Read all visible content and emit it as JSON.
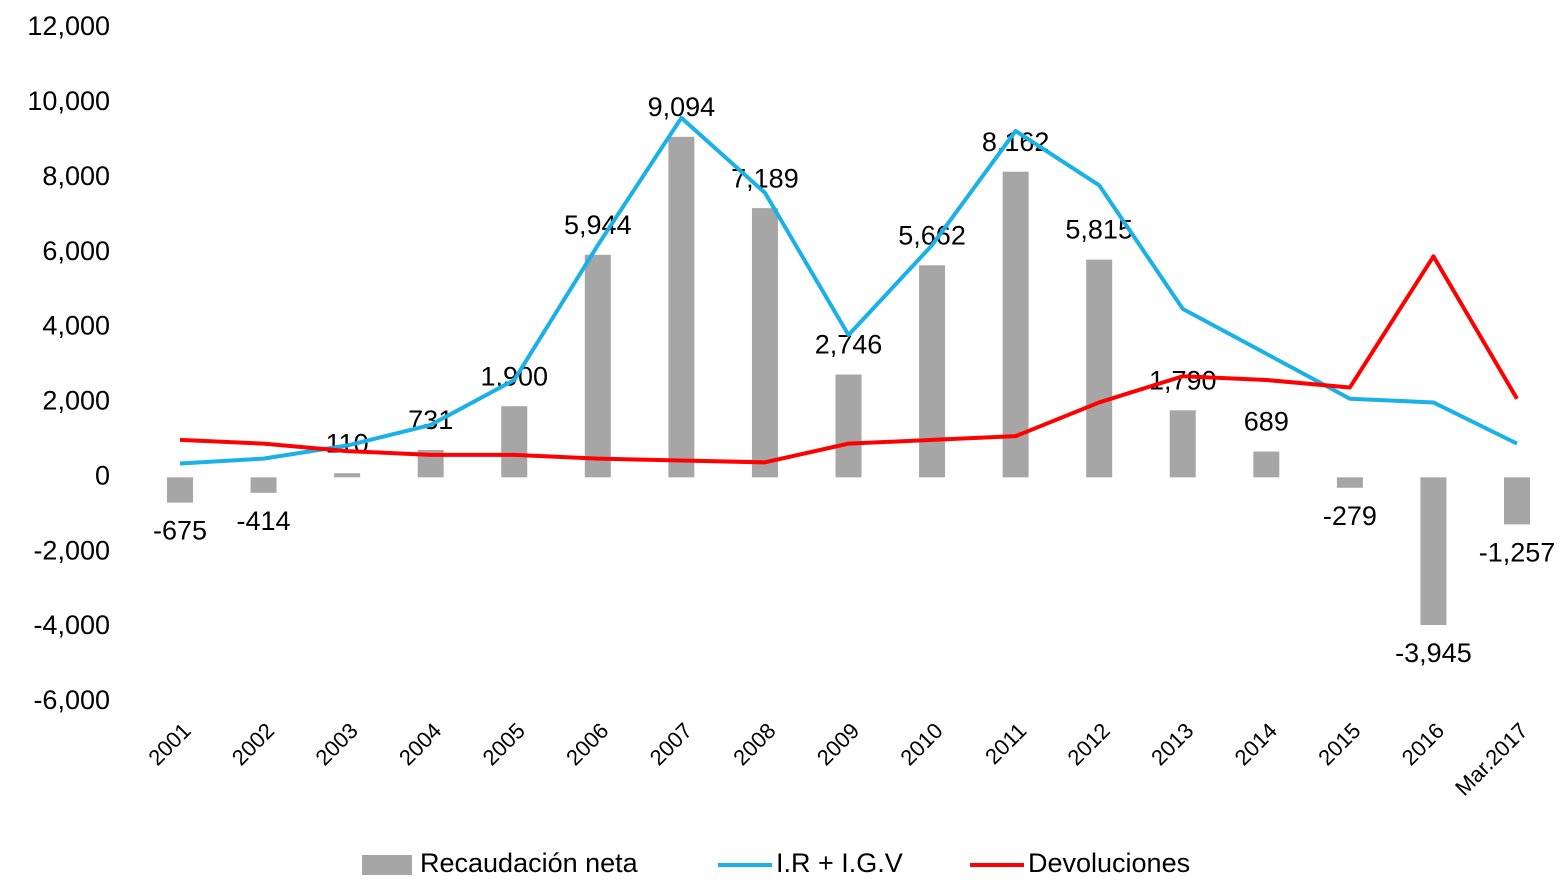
{
  "chart_data": {
    "type": "bar",
    "categories": [
      "2001",
      "2002",
      "2003",
      "2004",
      "2005",
      "2006",
      "2007",
      "2008",
      "2009",
      "2010",
      "2011",
      "2012",
      "2013",
      "2014",
      "2015",
      "2016",
      "Mar.2017"
    ],
    "series": [
      {
        "name": "Recaudación neta",
        "type": "bar",
        "color": "#a6a6a6",
        "values": [
          -675,
          -414,
          110,
          731,
          1900,
          5944,
          9094,
          7189,
          2746,
          5662,
          8162,
          5815,
          1790,
          689,
          -279,
          -3945,
          -1257
        ],
        "value_labels": [
          "-675",
          "-414",
          "110",
          "731",
          "1,900",
          "5,944",
          "9,094",
          "7,189",
          "2,746",
          "5,662",
          "8,162",
          "5,815",
          "1,790",
          "689",
          "-279",
          "-3,945",
          "-1,257"
        ]
      },
      {
        "name": "I.R + I.G.V",
        "type": "line",
        "color": "#1ab0e8",
        "values": [
          370,
          500,
          850,
          1400,
          2600,
          6200,
          9600,
          7600,
          3800,
          6200,
          9250,
          7800,
          4500,
          3300,
          2100,
          2000,
          900
        ]
      },
      {
        "name": "Devoluciones",
        "type": "line",
        "color": "#ff0000",
        "values": [
          1000,
          900,
          700,
          600,
          600,
          500,
          450,
          400,
          900,
          1000,
          1100,
          2000,
          2700,
          2600,
          2400,
          5900,
          2100
        ]
      }
    ],
    "ylim": [
      -6000,
      12000
    ],
    "yticks": [
      {
        "value": -6000,
        "label": "-6,000"
      },
      {
        "value": -4000,
        "label": "-4,000"
      },
      {
        "value": -2000,
        "label": "-2,000"
      },
      0,
      {
        "value": 2000,
        "label": "2,000"
      },
      {
        "value": 4000,
        "label": "4,000"
      },
      {
        "value": 6000,
        "label": "6,000"
      },
      {
        "value": 8000,
        "label": "8,000"
      },
      {
        "value": 10000,
        "label": "10,000"
      },
      {
        "value": 12000,
        "label": "12,000"
      }
    ]
  }
}
